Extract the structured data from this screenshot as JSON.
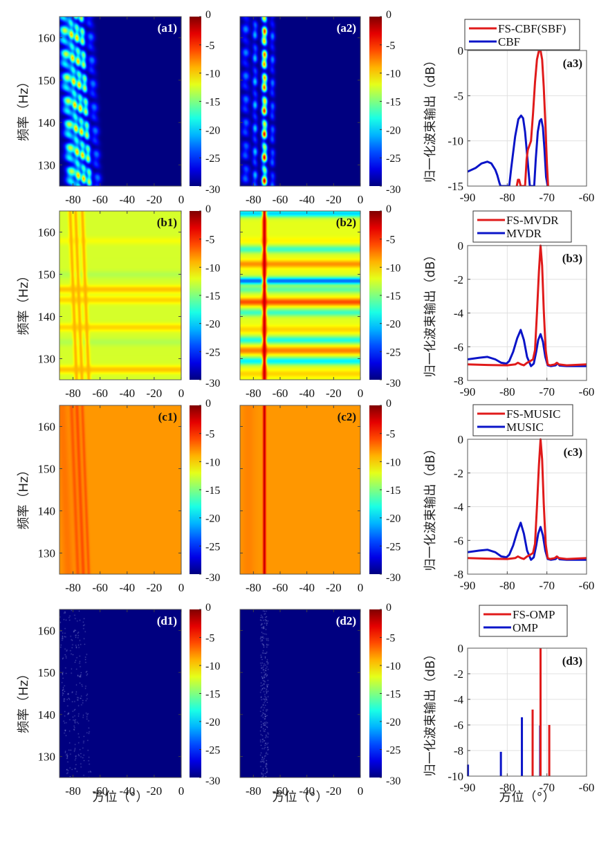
{
  "figure": {
    "heatmap_ylabel": "频率（Hz）",
    "line_ylabel": "归一化波束输出（dB）",
    "xlabel": "方位（°）"
  },
  "colors": {
    "fs_series": "#e01a1a",
    "base_series": "#0a14c8",
    "heatmap_floor": "#00008f"
  },
  "chart_data": [
    {
      "id": "a1",
      "type": "heatmap",
      "label": "(a1)",
      "xlim": [
        -90,
        0
      ],
      "ylim": [
        125,
        165
      ],
      "xticks": [
        -80,
        -60,
        -40,
        -20,
        0
      ],
      "yticks": [
        130,
        140,
        150,
        160
      ],
      "clim": [
        -30,
        0
      ],
      "cticks": [
        0,
        -5,
        -10,
        -15,
        -20,
        -25,
        -30
      ],
      "colormap": "jet",
      "background_db": -30,
      "ridges": [
        {
          "az": -84,
          "db": -12,
          "width": 4
        },
        {
          "az": -79,
          "db": -9,
          "width": 2
        },
        {
          "az": -75,
          "db": -8,
          "width": 2
        },
        {
          "az": -71,
          "db": -10,
          "width": 2
        },
        {
          "az": -65,
          "db": -22,
          "width": 3
        }
      ],
      "ridge_tilt_deg_per_hz": -0.15,
      "show_ylabel": true
    },
    {
      "id": "a2",
      "type": "heatmap",
      "label": "(a2)",
      "xlim": [
        -90,
        0
      ],
      "ylim": [
        125,
        165
      ],
      "xticks": [
        -80,
        -60,
        -40,
        -20,
        0
      ],
      "yticks": [
        130,
        140,
        150,
        160
      ],
      "clim": [
        -30,
        0
      ],
      "cticks": [
        0,
        -5,
        -10,
        -15,
        -20,
        -25,
        -30
      ],
      "colormap": "jet",
      "background_db": -30,
      "ridges": [
        {
          "az": -72,
          "db": -2,
          "width": 2
        },
        {
          "az": -86,
          "db": -22,
          "width": 3
        },
        {
          "az": -79,
          "db": -20,
          "width": 2
        },
        {
          "az": -66,
          "db": -22,
          "width": 2
        }
      ],
      "ridge_tilt_deg_per_hz": 0,
      "show_ylabel": false
    },
    {
      "id": "a3",
      "type": "line",
      "label": "(a3)",
      "xlim": [
        -90,
        -60
      ],
      "ylim": [
        -15,
        0
      ],
      "xticks": [
        -90,
        -80,
        -70,
        -60
      ],
      "yticks": [
        0,
        -5,
        -10,
        -15
      ],
      "legend": [
        "FS-CBF(SBF)",
        "CBF"
      ],
      "legend_position": "top",
      "series": [
        {
          "name": "FS-CBF(SBF)",
          "color": "fs",
          "x": [
            -77.6,
            -77.3,
            -77.0,
            -76.6,
            -76.0,
            -75.5,
            -75.1,
            -74.8,
            -74.4,
            -74.0,
            -73.5,
            -73.0,
            -72.5,
            -72.0,
            -71.6,
            -71.2,
            -70.8,
            -70.4,
            -70.0,
            -69.7
          ],
          "y": [
            -15,
            -14.3,
            -14.3,
            -15,
            -15,
            -15,
            -12,
            -11,
            -10.5,
            -10,
            -7,
            -3.5,
            -1,
            0,
            0,
            -1,
            -4,
            -8,
            -12.5,
            -15
          ]
        },
        {
          "name": "CBF",
          "color": "base",
          "x": [
            -90,
            -88,
            -86.5,
            -85,
            -84,
            -83,
            -82.5,
            -82,
            -81.7,
            -79.5,
            -79,
            -78,
            -77.2,
            -76.5,
            -76,
            -75.5,
            -75,
            -74.6,
            -74.3,
            -73.2,
            -72.8,
            -72.3,
            -71.8,
            -71.4,
            -71,
            -70.6,
            -70.2,
            -69.8
          ],
          "y": [
            -13.4,
            -13.0,
            -12.5,
            -12.3,
            -12.5,
            -13.2,
            -13.8,
            -14.6,
            -15,
            -15,
            -13,
            -9.5,
            -7.6,
            -7.2,
            -7.5,
            -9,
            -11.5,
            -13.5,
            -15,
            -15,
            -12,
            -9,
            -7.8,
            -7.6,
            -8.5,
            -11,
            -14,
            -15
          ]
        }
      ]
    },
    {
      "id": "b1",
      "type": "heatmap",
      "label": "(b1)",
      "xlim": [
        -90,
        0
      ],
      "ylim": [
        125,
        165
      ],
      "xticks": [
        -80,
        -60,
        -40,
        -20,
        0
      ],
      "yticks": [
        130,
        140,
        150,
        160
      ],
      "clim": [
        -30,
        0
      ],
      "cticks": [
        0,
        -5,
        -10,
        -15,
        -20,
        -25,
        -30
      ],
      "colormap": "jet",
      "background_db": -12.5,
      "bands": [
        {
          "f": 127.5,
          "db": -9.5
        },
        {
          "f": 137.5,
          "db": -10
        },
        {
          "f": 144,
          "db": -10
        },
        {
          "f": 146.5,
          "db": -9.5
        },
        {
          "f": 158,
          "db": -11.5
        },
        {
          "f": 150,
          "db": -13.5
        },
        {
          "f": 134,
          "db": -13.5
        }
      ],
      "ridges": [
        {
          "az": -80,
          "db": -9,
          "width": 1.5
        },
        {
          "az": -76,
          "db": -9,
          "width": 1.5
        },
        {
          "az": -71,
          "db": -9,
          "width": 1.5
        }
      ],
      "ridge_tilt_deg_per_hz": -0.12,
      "show_ylabel": true
    },
    {
      "id": "b2",
      "type": "heatmap",
      "label": "(b2)",
      "xlim": [
        -90,
        0
      ],
      "ylim": [
        125,
        165
      ],
      "xticks": [
        -80,
        -60,
        -40,
        -20,
        0
      ],
      "yticks": [
        130,
        140,
        150,
        160
      ],
      "clim": [
        -30,
        0
      ],
      "cticks": [
        0,
        -5,
        -10,
        -15,
        -20,
        -25,
        -30
      ],
      "colormap": "jet",
      "background_db": -12,
      "bands": [
        {
          "f": 164.5,
          "db": -20
        },
        {
          "f": 158,
          "db": -11
        },
        {
          "f": 156,
          "db": -17
        },
        {
          "f": 152.5,
          "db": -8
        },
        {
          "f": 148.5,
          "db": -23
        },
        {
          "f": 146.5,
          "db": -16
        },
        {
          "f": 143.5,
          "db": -6
        },
        {
          "f": 141,
          "db": -17
        },
        {
          "f": 137,
          "db": -10
        },
        {
          "f": 134.5,
          "db": -18
        },
        {
          "f": 132,
          "db": -7.5
        },
        {
          "f": 129.5,
          "db": -19
        },
        {
          "f": 126.5,
          "db": -10
        }
      ],
      "ridges": [
        {
          "az": -72,
          "db": -2,
          "width": 1.5
        }
      ],
      "ridge_tilt_deg_per_hz": 0,
      "show_ylabel": false
    },
    {
      "id": "b3",
      "type": "line",
      "label": "(b3)",
      "xlim": [
        -90,
        -60
      ],
      "ylim": [
        -8,
        0
      ],
      "xticks": [
        -90,
        -80,
        -70,
        -60
      ],
      "yticks": [
        0,
        -2,
        -4,
        -6,
        -8
      ],
      "legend": [
        "FS-MVDR",
        "MVDR"
      ],
      "legend_position": "top",
      "series": [
        {
          "name": "FS-MVDR",
          "color": "fs",
          "x": [
            -90,
            -85,
            -80,
            -78,
            -77.3,
            -76.5,
            -75.8,
            -75,
            -74.2,
            -73.5,
            -73,
            -72.5,
            -72.0,
            -71.6,
            -71.2,
            -70.8,
            -70.3,
            -69.8,
            -69.2,
            -68,
            -67.5,
            -67,
            -65,
            -60
          ],
          "y": [
            -7.05,
            -7.08,
            -7.1,
            -7.05,
            -6.95,
            -7.05,
            -7.1,
            -6.95,
            -6.85,
            -6.75,
            -6.2,
            -4,
            -1.5,
            0,
            -1.2,
            -3.8,
            -6.2,
            -7.05,
            -7.1,
            -7.05,
            -6.95,
            -7.05,
            -7.1,
            -7.05
          ]
        },
        {
          "name": "MVDR",
          "color": "base",
          "x": [
            -90,
            -87,
            -85,
            -83,
            -81.5,
            -80.2,
            -79.5,
            -78.5,
            -77.5,
            -76.6,
            -75.8,
            -75,
            -74,
            -73.3,
            -72.7,
            -72.2,
            -71.6,
            -71.0,
            -70.4,
            -69.8,
            -69,
            -67.8,
            -67.3,
            -66.8,
            -65,
            -60
          ],
          "y": [
            -6.75,
            -6.65,
            -6.6,
            -6.75,
            -6.95,
            -7.0,
            -6.85,
            -6.3,
            -5.5,
            -5.0,
            -5.6,
            -6.6,
            -7.15,
            -7.0,
            -6.3,
            -5.6,
            -5.25,
            -5.7,
            -6.6,
            -7.1,
            -7.15,
            -7.1,
            -6.98,
            -7.12,
            -7.15,
            -7.15
          ]
        }
      ]
    },
    {
      "id": "c1",
      "type": "heatmap",
      "label": "(c1)",
      "xlim": [
        -90,
        0
      ],
      "ylim": [
        125,
        165
      ],
      "xticks": [
        -80,
        -60,
        -40,
        -20,
        0
      ],
      "yticks": [
        130,
        140,
        150,
        160
      ],
      "clim": [
        -30,
        0
      ],
      "cticks": [
        0,
        -5,
        -10,
        -15,
        -20,
        -25,
        -30
      ],
      "colormap": "jet",
      "background_db": -8.2,
      "ridges": [
        {
          "az": -86,
          "db": -7.2,
          "width": 4
        },
        {
          "az": -79,
          "db": -6.3,
          "width": 1.5
        },
        {
          "az": -75,
          "db": -6,
          "width": 1.5
        },
        {
          "az": -71,
          "db": -6.3,
          "width": 1.2
        }
      ],
      "ridge_tilt_deg_per_hz": -0.12,
      "show_ylabel": true
    },
    {
      "id": "c2",
      "type": "heatmap",
      "label": "(c2)",
      "xlim": [
        -90,
        0
      ],
      "ylim": [
        125,
        165
      ],
      "xticks": [
        -80,
        -60,
        -40,
        -20,
        0
      ],
      "yticks": [
        130,
        140,
        150,
        160
      ],
      "clim": [
        -30,
        0
      ],
      "cticks": [
        0,
        -5,
        -10,
        -15,
        -20,
        -25,
        -30
      ],
      "colormap": "jet",
      "background_db": -8.2,
      "ridges": [
        {
          "az": -72,
          "db": -1.5,
          "width": 1.0
        },
        {
          "az": -84,
          "db": -7.6,
          "width": 5
        }
      ],
      "ridge_tilt_deg_per_hz": 0,
      "show_ylabel": false
    },
    {
      "id": "c3",
      "type": "line",
      "label": "(c3)",
      "xlim": [
        -90,
        -60
      ],
      "ylim": [
        -8,
        0
      ],
      "xticks": [
        -90,
        -80,
        -70,
        -60
      ],
      "yticks": [
        0,
        -2,
        -4,
        -6,
        -8
      ],
      "legend": [
        "FS-MUSIC",
        "MUSIC"
      ],
      "legend_position": "top",
      "series": [
        {
          "name": "FS-MUSIC",
          "color": "fs",
          "x": [
            -90,
            -85,
            -80,
            -78,
            -77.3,
            -76.5,
            -75.8,
            -75,
            -74.2,
            -73.5,
            -73,
            -72.5,
            -72.0,
            -71.6,
            -71.2,
            -70.8,
            -70.3,
            -69.8,
            -69.2,
            -68,
            -67.5,
            -67,
            -65,
            -60
          ],
          "y": [
            -7.05,
            -7.08,
            -7.1,
            -7.05,
            -6.95,
            -7.05,
            -7.1,
            -6.95,
            -6.85,
            -6.75,
            -6.2,
            -4,
            -1.5,
            0,
            -1.2,
            -3.8,
            -6.2,
            -7.05,
            -7.1,
            -7.05,
            -6.95,
            -7.05,
            -7.1,
            -7.05
          ]
        },
        {
          "name": "MUSIC",
          "color": "base",
          "x": [
            -90,
            -87,
            -85,
            -83,
            -81.5,
            -80.2,
            -79.5,
            -78.5,
            -77.5,
            -76.6,
            -75.8,
            -75,
            -74,
            -73.3,
            -72.7,
            -72.2,
            -71.6,
            -71.0,
            -70.4,
            -69.8,
            -69,
            -67.8,
            -67.3,
            -66.8,
            -65,
            -60
          ],
          "y": [
            -6.7,
            -6.6,
            -6.55,
            -6.7,
            -6.95,
            -7.0,
            -6.85,
            -6.3,
            -5.5,
            -4.95,
            -5.6,
            -6.6,
            -7.15,
            -7.0,
            -6.3,
            -5.6,
            -5.2,
            -5.7,
            -6.6,
            -7.1,
            -7.15,
            -7.1,
            -6.98,
            -7.12,
            -7.15,
            -7.15
          ]
        }
      ]
    },
    {
      "id": "d1",
      "type": "heatmap",
      "label": "(d1)",
      "xlim": [
        -90,
        0
      ],
      "ylim": [
        125,
        165
      ],
      "xticks": [
        -80,
        -60,
        -40,
        -20,
        0
      ],
      "yticks": [
        130,
        140,
        150,
        160
      ],
      "clim": [
        -30,
        0
      ],
      "cticks": [
        0,
        -5,
        -10,
        -15,
        -20,
        -25,
        -30
      ],
      "colormap": "jet",
      "background_db": -30,
      "sparse_points_az": [
        -87,
        -84,
        -80,
        -77,
        -74,
        -70
      ],
      "ridge_tilt_deg_per_hz": -0.12,
      "show_ylabel": true
    },
    {
      "id": "d2",
      "type": "heatmap",
      "label": "(d2)",
      "xlim": [
        -90,
        0
      ],
      "ylim": [
        125,
        165
      ],
      "xticks": [
        -80,
        -60,
        -40,
        -20,
        0
      ],
      "yticks": [
        130,
        140,
        150,
        160
      ],
      "clim": [
        -30,
        0
      ],
      "cticks": [
        0,
        -5,
        -10,
        -15,
        -20,
        -25,
        -30
      ],
      "colormap": "jet",
      "background_db": -30,
      "sparse_points_az": [
        -74,
        -72,
        -70
      ],
      "ridge_tilt_deg_per_hz": 0,
      "show_ylabel": false
    },
    {
      "id": "d3",
      "type": "stem",
      "label": "(d3)",
      "xlim": [
        -90,
        -60
      ],
      "ylim": [
        -10,
        0
      ],
      "xticks": [
        -90,
        -80,
        -70,
        -60
      ],
      "yticks": [
        0,
        -2,
        -4,
        -6,
        -8,
        -10
      ],
      "legend": [
        "FS-OMP",
        "OMP"
      ],
      "legend_position": "top",
      "series": [
        {
          "name": "FS-OMP",
          "color": "fs",
          "x": [
            -73.6,
            -71.6,
            -69.4
          ],
          "y": [
            -4.8,
            0,
            -6.0
          ]
        },
        {
          "name": "OMP",
          "color": "base",
          "x": [
            -89.9,
            -81.6,
            -76.3,
            -71.7
          ],
          "y": [
            -9.1,
            -8.1,
            -5.4,
            -6.05
          ]
        }
      ]
    }
  ]
}
